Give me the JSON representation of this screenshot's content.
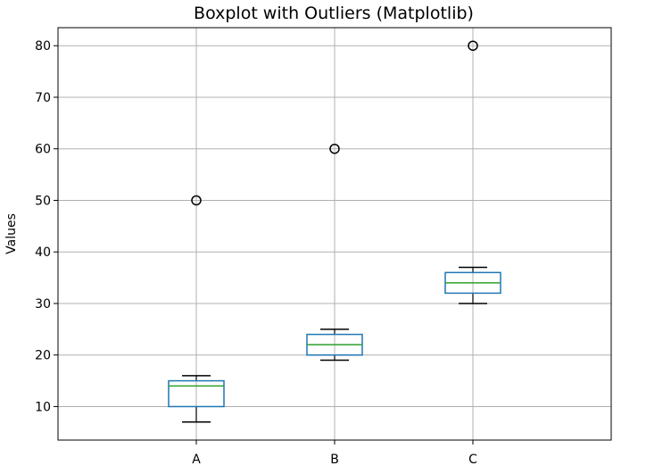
{
  "chart_data": {
    "type": "boxplot",
    "title": "Boxplot with Outliers (Matplotlib)",
    "xlabel": "",
    "ylabel": "Values",
    "ylim": [
      3.5,
      83.5
    ],
    "yticks": [
      10,
      20,
      30,
      40,
      50,
      60,
      70,
      80
    ],
    "grid": true,
    "colors": {
      "box": "#1f77b4",
      "median": "#2ca02c",
      "whisker": "#000000",
      "grid": "#b0b0b0",
      "outlier": "#000000"
    },
    "categories": [
      "A",
      "B",
      "C"
    ],
    "boxes": [
      {
        "category": "A",
        "whisker_low": 7,
        "q1": 10,
        "median": 14,
        "q3": 15,
        "whisker_high": 16,
        "outliers": [
          50
        ]
      },
      {
        "category": "B",
        "whisker_low": 19,
        "q1": 20,
        "median": 22,
        "q3": 24,
        "whisker_high": 25,
        "outliers": [
          60
        ]
      },
      {
        "category": "C",
        "whisker_low": 30,
        "q1": 32,
        "median": 34,
        "q3": 36,
        "whisker_high": 37,
        "outliers": [
          80
        ]
      }
    ]
  }
}
